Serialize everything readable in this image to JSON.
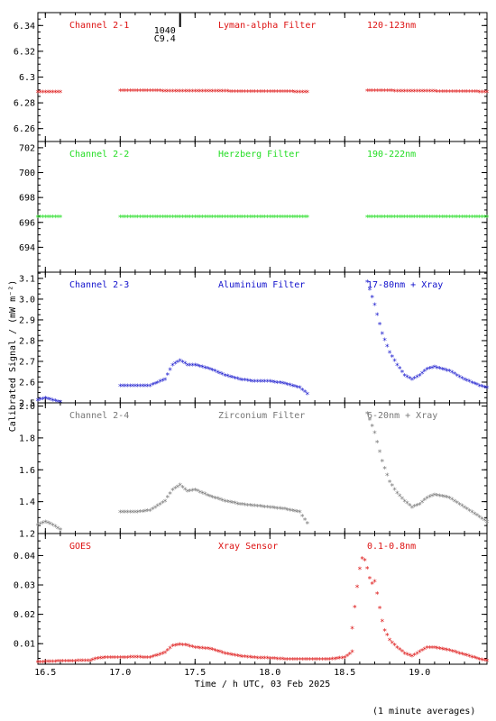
{
  "figure": {
    "ylabel": "Calibrated Signal / (mW m⁻²)",
    "xlabel": "Time / h UTC, 03 Feb 2025",
    "note": "(1 minute averages)",
    "marker_label": "1040",
    "marker_value": "C9.4",
    "marker_x": 17.4
  },
  "chart_data": [
    {
      "type": "scatter",
      "labels": [
        "Channel 2-1",
        "Lyman-alpha Filter",
        "120-123nm"
      ],
      "color": "#dd1111",
      "ylim": [
        6.25,
        6.35
      ],
      "yticks": [
        6.26,
        6.28,
        6.3,
        6.32,
        6.34
      ],
      "xlim": [
        16.45,
        19.45
      ],
      "xticks": [
        16.5,
        17.0,
        17.5,
        18.0,
        18.5,
        19.0
      ],
      "segments": [
        {
          "x": [
            16.45,
            16.6
          ],
          "y": [
            6.288,
            6.288
          ]
        },
        {
          "x": [
            17.0,
            18.25
          ],
          "y": [
            6.289,
            6.288
          ]
        },
        {
          "x": [
            18.65,
            19.45
          ],
          "y": [
            6.289,
            6.288
          ]
        }
      ]
    },
    {
      "type": "scatter",
      "labels": [
        "Channel 2-2",
        "Herzberg Filter",
        "190-222nm"
      ],
      "color": "#22dd22",
      "ylim": [
        692.0,
        702.5
      ],
      "yticks": [
        694,
        696,
        698,
        700,
        702
      ],
      "xlim": [
        16.45,
        19.45
      ],
      "xticks": [
        16.5,
        17.0,
        17.5,
        18.0,
        18.5,
        19.0
      ],
      "segments": [
        {
          "x": [
            16.45,
            16.6
          ],
          "y": [
            696.4,
            696.4
          ]
        },
        {
          "x": [
            17.0,
            18.25
          ],
          "y": [
            696.4,
            696.4
          ]
        },
        {
          "x": [
            18.65,
            19.45
          ],
          "y": [
            696.4,
            696.4
          ]
        }
      ]
    },
    {
      "type": "scatter",
      "labels": [
        "Channel 2-3",
        "Aluminium Filter",
        "17-80nm + Xray"
      ],
      "color": "#1111cc",
      "ylim": [
        2.5,
        3.13
      ],
      "yticks": [
        2.5,
        2.6,
        2.7,
        2.8,
        2.9,
        3.0,
        3.1
      ],
      "yticklabels": [
        "2.5",
        "2.6",
        "2.7",
        "2.8",
        "2.9",
        "3.0",
        "3.1"
      ],
      "xlim": [
        16.45,
        19.45
      ],
      "xticks": [
        16.5,
        17.0,
        17.5,
        18.0,
        18.5,
        19.0
      ],
      "segments": [
        {
          "x": [
            16.45,
            16.5,
            16.55,
            16.6
          ],
          "y": [
            2.51,
            2.52,
            2.51,
            2.5
          ]
        },
        {
          "x": [
            17.0,
            17.1,
            17.2,
            17.3,
            17.35,
            17.4,
            17.45,
            17.5,
            17.6,
            17.7,
            17.8,
            17.9,
            18.0,
            18.1,
            18.2,
            18.25
          ],
          "y": [
            2.58,
            2.58,
            2.58,
            2.61,
            2.68,
            2.7,
            2.68,
            2.68,
            2.66,
            2.63,
            2.61,
            2.6,
            2.6,
            2.59,
            2.57,
            2.54
          ]
        },
        {
          "x": [
            18.65,
            18.7,
            18.75,
            18.8,
            18.85,
            18.9,
            18.95,
            19.0,
            19.05,
            19.1,
            19.2,
            19.3,
            19.4,
            19.45
          ],
          "y": [
            3.08,
            2.97,
            2.83,
            2.74,
            2.68,
            2.63,
            2.61,
            2.63,
            2.66,
            2.67,
            2.65,
            2.61,
            2.58,
            2.57
          ]
        }
      ]
    },
    {
      "type": "scatter",
      "labels": [
        "Channel 2-4",
        "Zirconium Filter",
        "6-20nm + Xray"
      ],
      "color": "#777777",
      "ylim": [
        1.2,
        2.02
      ],
      "yticks": [
        1.2,
        1.4,
        1.6,
        1.8,
        2.0
      ],
      "yticklabels": [
        "1.2",
        "1.4",
        "1.6",
        "1.8",
        "2.0"
      ],
      "xlim": [
        16.45,
        19.45
      ],
      "xticks": [
        16.5,
        17.0,
        17.5,
        18.0,
        18.5,
        19.0
      ],
      "segments": [
        {
          "x": [
            16.45,
            16.5,
            16.55,
            16.6
          ],
          "y": [
            1.25,
            1.27,
            1.25,
            1.22
          ]
        },
        {
          "x": [
            17.0,
            17.1,
            17.2,
            17.3,
            17.35,
            17.4,
            17.45,
            17.5,
            17.6,
            17.7,
            17.8,
            17.9,
            18.0,
            18.1,
            18.2,
            18.25
          ],
          "y": [
            1.33,
            1.33,
            1.34,
            1.4,
            1.47,
            1.5,
            1.46,
            1.47,
            1.43,
            1.4,
            1.38,
            1.37,
            1.36,
            1.35,
            1.33,
            1.26
          ]
        },
        {
          "x": [
            18.65,
            18.7,
            18.75,
            18.8,
            18.85,
            18.9,
            18.95,
            19.0,
            19.05,
            19.1,
            19.2,
            19.3,
            19.4,
            19.45
          ],
          "y": [
            1.95,
            1.83,
            1.65,
            1.52,
            1.45,
            1.4,
            1.36,
            1.38,
            1.42,
            1.44,
            1.42,
            1.36,
            1.3,
            1.27
          ]
        }
      ]
    },
    {
      "type": "scatter",
      "labels": [
        "GOES",
        "Xray Sensor",
        "0.1-0.8nm"
      ],
      "color": "#dd1111",
      "ylim": [
        0.003,
        0.0475
      ],
      "yticks": [
        0.01,
        0.02,
        0.03,
        0.04
      ],
      "yticklabels": [
        "0.01",
        "0.02",
        "0.03",
        "0.04"
      ],
      "xlim": [
        16.45,
        19.45
      ],
      "xticks": [
        16.5,
        17.0,
        17.5,
        18.0,
        18.5,
        19.0
      ],
      "xticklabels": [
        "16.5",
        "17.0",
        "17.5",
        "18.0",
        "18.5",
        "19.0"
      ],
      "segments": [
        {
          "x": [
            16.45,
            16.6,
            16.8,
            16.85,
            16.9,
            17.0,
            17.1,
            17.2,
            17.3,
            17.35,
            17.4,
            17.45,
            17.5,
            17.6,
            17.7,
            17.8,
            17.9,
            18.0,
            18.1,
            18.2,
            18.3,
            18.4,
            18.5,
            18.55
          ],
          "y": [
            0.0035,
            0.0038,
            0.004,
            0.0048,
            0.005,
            0.005,
            0.0052,
            0.005,
            0.0068,
            0.009,
            0.0095,
            0.0092,
            0.0085,
            0.008,
            0.0065,
            0.0055,
            0.005,
            0.0048,
            0.0045,
            0.0044,
            0.0044,
            0.0045,
            0.005,
            0.007
          ]
        },
        {
          "x": [
            18.55,
            18.58,
            18.61,
            18.64,
            18.66,
            18.68,
            18.7,
            18.72,
            18.74,
            18.76,
            18.8,
            18.85,
            18.9,
            18.95,
            19.0,
            19.05,
            19.1,
            19.2,
            19.3,
            19.4,
            19.45
          ],
          "y": [
            0.015,
            0.028,
            0.039,
            0.038,
            0.033,
            0.03,
            0.031,
            0.026,
            0.02,
            0.015,
            0.011,
            0.0085,
            0.0065,
            0.0055,
            0.007,
            0.0085,
            0.0085,
            0.0075,
            0.006,
            0.0045,
            0.004
          ]
        }
      ]
    }
  ]
}
